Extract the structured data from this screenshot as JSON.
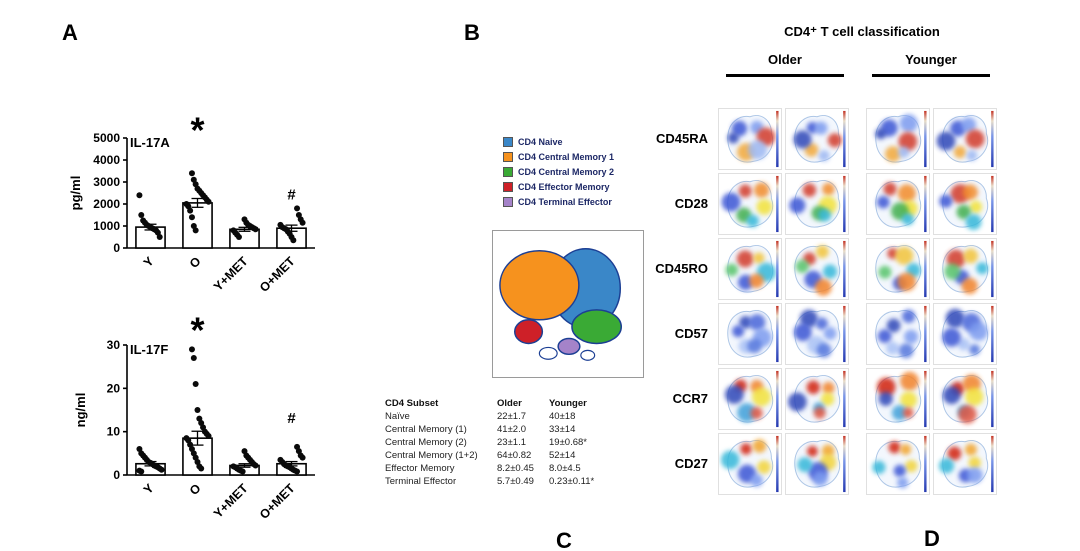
{
  "panels": {
    "a": "A",
    "b": "B",
    "c": "C",
    "d": "D"
  },
  "chart_data": [
    {
      "type": "scatter",
      "title": "IL-17A",
      "ylabel": "pg/ml",
      "ylim": [
        0,
        5000
      ],
      "yticks": [
        0,
        1000,
        2000,
        3000,
        4000,
        5000
      ],
      "categories": [
        "Y",
        "O",
        "Y+MET",
        "O+MET"
      ],
      "means": [
        950,
        2050,
        850,
        900
      ],
      "sems": [
        130,
        200,
        90,
        140
      ],
      "points": [
        [
          2400,
          1500,
          1250,
          1150,
          1050,
          1000,
          950,
          900,
          850,
          800,
          700,
          500
        ],
        [
          3400,
          3100,
          2900,
          2700,
          2600,
          2500,
          2400,
          2300,
          2200,
          2100,
          2000,
          1900,
          1700,
          1400,
          1000,
          800
        ],
        [
          1300,
          1150,
          1050,
          1000,
          950,
          900,
          850,
          800,
          700,
          600,
          500
        ],
        [
          1800,
          1500,
          1300,
          1150,
          1050,
          950,
          900,
          850,
          750,
          650,
          500,
          350
        ]
      ],
      "annotations": [
        {
          "symbol": "*",
          "category": 1,
          "value": 4800
        },
        {
          "symbol": "#",
          "category": 3,
          "value": 2200
        }
      ]
    },
    {
      "type": "scatter",
      "title": "IL-17F",
      "ylabel": "ng/ml",
      "ylim": [
        0,
        30
      ],
      "yticks": [
        0,
        10,
        20,
        30
      ],
      "categories": [
        "Y",
        "O",
        "Y+MET",
        "O+MET"
      ],
      "means": [
        2.6,
        8.5,
        2.2,
        2.6
      ],
      "sems": [
        0.5,
        1.6,
        0.4,
        0.5
      ],
      "points": [
        [
          6,
          5,
          4.5,
          4,
          3.5,
          3,
          2.8,
          2.5,
          2.2,
          2,
          1.8,
          1.5,
          1.2,
          1,
          0.8
        ],
        [
          29,
          27,
          21,
          15,
          13,
          12,
          11,
          10,
          9.5,
          9,
          8.5,
          8,
          7,
          6,
          5,
          4,
          3,
          2,
          1.5
        ],
        [
          5.5,
          4.5,
          4,
          3.5,
          3,
          2.5,
          2.2,
          2,
          1.8,
          1.5,
          1.2,
          1,
          0.8
        ],
        [
          6.5,
          5.5,
          4.5,
          4,
          3.5,
          3,
          2.5,
          2.2,
          2,
          1.8,
          1.5,
          1.2,
          1,
          0.8
        ]
      ],
      "annotations": [
        {
          "symbol": "*",
          "category": 1,
          "value": 30.6
        },
        {
          "symbol": "#",
          "category": 3,
          "value": 12
        }
      ]
    }
  ],
  "panel_b": {
    "title": "CD4⁺ T cell classification",
    "group_headers": [
      "Older",
      "Younger"
    ],
    "legend": [
      {
        "label": "CD4 Naive",
        "color": "#3a87c8"
      },
      {
        "label": "CD4 Central Memory 1",
        "color": "#f6921e"
      },
      {
        "label": "CD4 Central Memory 2",
        "color": "#3aaa35"
      },
      {
        "label": "CD4 Effector Memory",
        "color": "#ce2028"
      },
      {
        "label": "CD4 Terminal Effector",
        "color": "#a583c9"
      }
    ],
    "subset_table": {
      "headers": [
        "CD4 Subset",
        "Older",
        "Younger"
      ],
      "rows": [
        [
          "Naïve",
          "22±1.7",
          "40±18"
        ],
        [
          "Central Memory (1)",
          "41±2.0",
          "33±14"
        ],
        [
          "Central Memory (2)",
          "23±1.1",
          "19±0.68*"
        ],
        [
          "Central Memory (1+2)",
          "64±0.82",
          "52±14"
        ],
        [
          "Effector Memory",
          "8.2±0.45",
          "8.0±4.5"
        ],
        [
          "Terminal Effector",
          "5.7±0.49",
          "0.23±0.11*"
        ]
      ]
    },
    "marker_rows": [
      "CD45RA",
      "CD28",
      "CD45RO",
      "CD57",
      "CCR7",
      "CD27"
    ]
  }
}
